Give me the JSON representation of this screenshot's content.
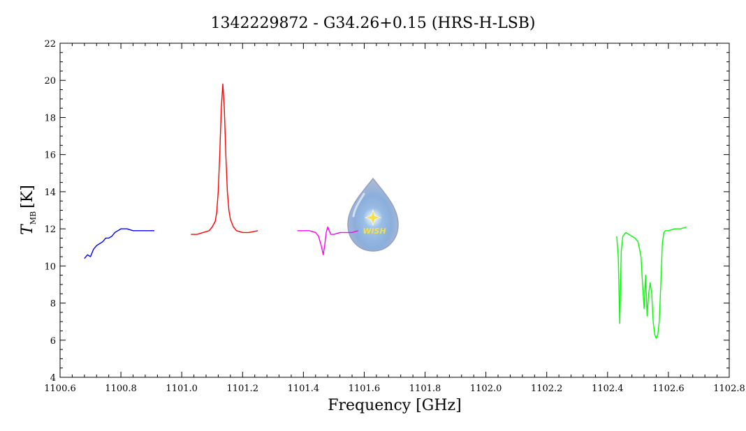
{
  "chart_data": {
    "type": "line",
    "title": "1342229872 - G34.26+0.15 (HRS-H-LSB)",
    "xlabel": "Frequency [GHz]",
    "ylabel": {
      "symbol": "T",
      "subscript": "MB",
      "unit": "[K]"
    },
    "xlim": [
      1100.6,
      1102.8
    ],
    "ylim": [
      4,
      22
    ],
    "x_ticks": [
      1100.6,
      1100.8,
      1101.0,
      1101.2,
      1101.4,
      1101.6,
      1101.8,
      1102.0,
      1102.2,
      1102.4,
      1102.6,
      1102.8
    ],
    "x_tick_labels": [
      "1100.6",
      "1100.8",
      "1101.0",
      "1101.2",
      "1101.4",
      "1101.6",
      "1101.8",
      "1102.0",
      "1102.2",
      "1102.4",
      "1102.6",
      "1102.8"
    ],
    "y_ticks": [
      4,
      6,
      8,
      10,
      12,
      14,
      16,
      18,
      20,
      22
    ],
    "y_tick_labels": [
      "4",
      "6",
      "8",
      "10",
      "12",
      "14",
      "16",
      "18",
      "20",
      "22"
    ],
    "grid": false,
    "legend": "none",
    "logo": {
      "text": "WISH",
      "icon": "water-drop-star-icon"
    },
    "series": [
      {
        "color": "#0000ff",
        "x": [
          1100.68,
          1100.69,
          1100.7,
          1100.71,
          1100.72,
          1100.73,
          1100.74,
          1100.75,
          1100.76,
          1100.77,
          1100.78,
          1100.79,
          1100.8,
          1100.82,
          1100.84,
          1100.86,
          1100.88,
          1100.9,
          1100.91
        ],
        "y": [
          10.4,
          10.6,
          10.5,
          10.9,
          11.1,
          11.2,
          11.3,
          11.5,
          11.5,
          11.6,
          11.8,
          11.9,
          12.0,
          12.0,
          11.9,
          11.9,
          11.9,
          11.9,
          11.9
        ]
      },
      {
        "color": "#ff0000",
        "x": [
          1101.03,
          1101.05,
          1101.07,
          1101.09,
          1101.1,
          1101.11,
          1101.115,
          1101.12,
          1101.125,
          1101.13,
          1101.135,
          1101.14,
          1101.145,
          1101.15,
          1101.155,
          1101.16,
          1101.17,
          1101.18,
          1101.2,
          1101.22,
          1101.25
        ],
        "y": [
          11.7,
          11.7,
          11.8,
          11.9,
          12.1,
          12.4,
          12.9,
          14.0,
          16.0,
          18.5,
          19.8,
          18.5,
          16.0,
          14.0,
          13.0,
          12.5,
          12.1,
          11.9,
          11.8,
          11.8,
          11.9
        ]
      },
      {
        "color": "#ff00ff",
        "x": [
          1101.38,
          1101.4,
          1101.42,
          1101.44,
          1101.45,
          1101.46,
          1101.465,
          1101.47,
          1101.475,
          1101.48,
          1101.49,
          1101.5,
          1101.52,
          1101.54,
          1101.56,
          1101.58
        ],
        "y": [
          11.9,
          11.9,
          11.9,
          11.8,
          11.6,
          11.0,
          10.6,
          11.1,
          11.8,
          12.1,
          11.7,
          11.7,
          11.8,
          11.8,
          11.8,
          11.9
        ]
      },
      {
        "color": "#00ff00",
        "x": [
          1102.43,
          1102.435,
          1102.44,
          1102.445,
          1102.45,
          1102.46,
          1102.47,
          1102.48,
          1102.49,
          1102.5,
          1102.51,
          1102.515,
          1102.52,
          1102.525,
          1102.53,
          1102.535,
          1102.54,
          1102.545,
          1102.55,
          1102.555,
          1102.56,
          1102.565,
          1102.57,
          1102.575,
          1102.58,
          1102.585,
          1102.59,
          1102.6,
          1102.62,
          1102.64,
          1102.66
        ],
        "y": [
          11.6,
          10.5,
          6.9,
          10.8,
          11.6,
          11.8,
          11.7,
          11.6,
          11.5,
          11.3,
          10.5,
          9.0,
          7.7,
          9.5,
          7.3,
          8.5,
          9.1,
          8.5,
          7.0,
          6.3,
          6.1,
          6.3,
          7.0,
          9.0,
          11.2,
          11.8,
          11.9,
          11.9,
          12.0,
          12.0,
          12.1
        ]
      }
    ]
  }
}
